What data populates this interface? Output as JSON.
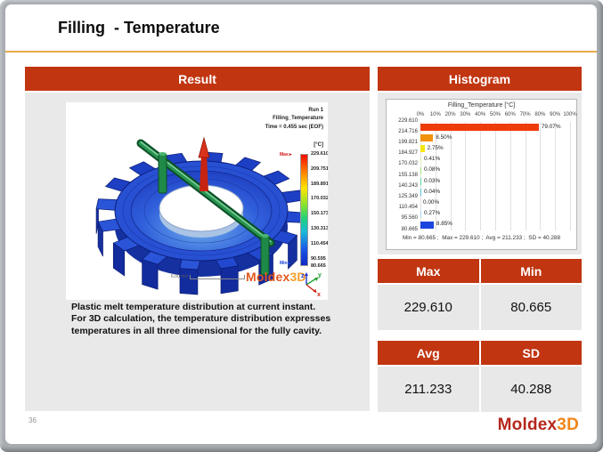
{
  "slide": {
    "title": "Filling  - Temperature",
    "page_number": "36",
    "logo": {
      "name": "Moldex",
      "suffix": "3D"
    }
  },
  "result_panel": {
    "header": "Result",
    "caption": "Plastic melt temperature distribution at current instant. For 3D calculation, the temperature distribution expresses temperatures in all three dimensional for the fully cavity.",
    "model": {
      "run_label": "Run 1",
      "result_label": "Filling_Temperature",
      "time_label": "Time = 0.455 sec (EOF)",
      "unit_label": "[°C]",
      "max_marker": {
        "label": "Max",
        "icon": "►"
      },
      "min_marker": {
        "label": "Min",
        "icon": "►"
      },
      "scale_values": [
        "229.610",
        "209.751",
        "189.891",
        "170.032",
        "150.173",
        "130.313",
        "110.454",
        "90.595",
        "80.665"
      ],
      "ruler_label": "6.00 mm",
      "watermark": {
        "name": "Moldex",
        "suffix": "3D"
      },
      "axes": {
        "x": "x",
        "y": "y",
        "z": "z"
      }
    }
  },
  "histogram_panel": {
    "header": "Histogram",
    "chart_data": {
      "type": "bar",
      "orientation": "horizontal",
      "title": "Filling_Temperature [°C]",
      "x_ticks": [
        "0%",
        "10%",
        "20%",
        "30%",
        "40%",
        "50%",
        "60%",
        "70%",
        "80%",
        "90%",
        "100%"
      ],
      "xlim": [
        0,
        100
      ],
      "grid": true,
      "legend": "none",
      "bin_edges": [
        "229.610",
        "214.716",
        "199.821",
        "184.927",
        "170.032",
        "155.138",
        "140.243",
        "125.349",
        "110.454",
        "95.560",
        "80.665"
      ],
      "bars": [
        {
          "range": "229.610-214.716",
          "pct": 79.07,
          "label": "79.07%",
          "color": "#ee3b09"
        },
        {
          "range": "214.716-199.821",
          "pct": 8.5,
          "label": "8.50%",
          "color": "#f1920e"
        },
        {
          "range": "199.821-184.927",
          "pct": 2.75,
          "label": "2.75%",
          "color": "#f4e60b"
        },
        {
          "range": "184.927-170.032",
          "pct": 0.41,
          "label": "0.41%",
          "color": "#d9f2a5"
        },
        {
          "range": "170.032-155.138",
          "pct": 0.08,
          "label": "0.08%",
          "color": "#9fe87d"
        },
        {
          "range": "155.138-140.243",
          "pct": 0.03,
          "label": "0.03%",
          "color": "#55d6a0"
        },
        {
          "range": "140.243-125.349",
          "pct": 0.04,
          "label": "0.04%",
          "color": "#4fc4da"
        },
        {
          "range": "125.349-110.454",
          "pct": 0.0,
          "label": "0.00%",
          "color": "#7fb9ef"
        },
        {
          "range": "110.454-95.560",
          "pct": 0.27,
          "label": "0.27%",
          "color": "#a9d3f6"
        },
        {
          "range": "95.560-80.665",
          "pct": 8.85,
          "label": "8.85%",
          "color": "#1b46dd"
        }
      ],
      "footer": "Min = 80.665 ;  Max = 229.610 ;  Avg = 211.233 ;  SD = 40.288"
    }
  },
  "stats_tables": {
    "max": {
      "label": "Max",
      "value": "229.610"
    },
    "min": {
      "label": "Min",
      "value": "80.665"
    },
    "avg": {
      "label": "Avg",
      "value": "211.233"
    },
    "sd": {
      "label": "SD",
      "value": "40.288"
    }
  },
  "colors": {
    "accent_red": "#c13511",
    "panel_gray": "#e9e9e9",
    "underline_orange": "#eaa94f",
    "histogram_top_bar": "#ee3b09",
    "histogram_bottom_bar": "#1b46dd",
    "logo_red": "#b5271c",
    "logo_orange": "#f0861a"
  }
}
